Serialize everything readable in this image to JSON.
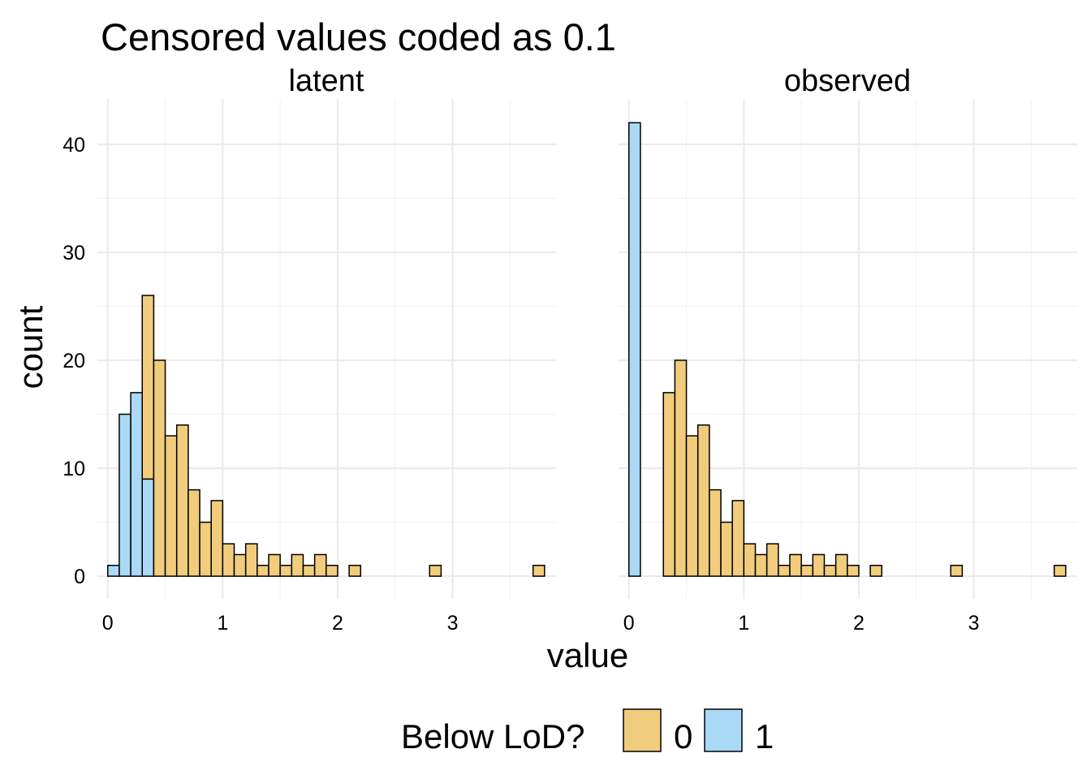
{
  "chart_data": {
    "type": "bar",
    "title": "Censored values coded as 0.1",
    "xlabel": "value",
    "ylabel": "count",
    "xlim": [
      -0.09,
      3.9
    ],
    "ylim": [
      -2.1,
      44.2
    ],
    "x_ticks": [
      0,
      1,
      2,
      3
    ],
    "y_ticks": [
      0,
      10,
      20,
      30,
      40
    ],
    "grid": true,
    "bin_width": 0.1,
    "legend": {
      "title": "Below LoD?",
      "position": "bottom",
      "entries": [
        {
          "label": "0",
          "color": "#f0cc7c"
        },
        {
          "label": "1",
          "color": "#a9d9f5"
        }
      ]
    },
    "colors": {
      "0": "#f0cc7c",
      "1": "#a9d9f5"
    },
    "panels": [
      {
        "label": "latent",
        "bars": [
          {
            "x": 0.05,
            "count": 1,
            "group": "1"
          },
          {
            "x": 0.15,
            "count": 15,
            "group": "1"
          },
          {
            "x": 0.25,
            "count": 17,
            "group": "1"
          },
          {
            "x": 0.35,
            "count": 9,
            "group": "1"
          },
          {
            "x": 0.35,
            "count": 17,
            "group": "0",
            "base": 9
          },
          {
            "x": 0.45,
            "count": 20,
            "group": "0"
          },
          {
            "x": 0.55,
            "count": 13,
            "group": "0"
          },
          {
            "x": 0.65,
            "count": 14,
            "group": "0"
          },
          {
            "x": 0.75,
            "count": 8,
            "group": "0"
          },
          {
            "x": 0.85,
            "count": 5,
            "group": "0"
          },
          {
            "x": 0.95,
            "count": 7,
            "group": "0"
          },
          {
            "x": 1.05,
            "count": 3,
            "group": "0"
          },
          {
            "x": 1.15,
            "count": 2,
            "group": "0"
          },
          {
            "x": 1.25,
            "count": 3,
            "group": "0"
          },
          {
            "x": 1.35,
            "count": 1,
            "group": "0"
          },
          {
            "x": 1.45,
            "count": 2,
            "group": "0"
          },
          {
            "x": 1.55,
            "count": 1,
            "group": "0"
          },
          {
            "x": 1.65,
            "count": 2,
            "group": "0"
          },
          {
            "x": 1.75,
            "count": 1,
            "group": "0"
          },
          {
            "x": 1.85,
            "count": 2,
            "group": "0"
          },
          {
            "x": 1.95,
            "count": 1,
            "group": "0"
          },
          {
            "x": 2.05,
            "count": 0,
            "group": "0"
          },
          {
            "x": 2.15,
            "count": 1,
            "group": "0"
          },
          {
            "x": 2.25,
            "count": 0,
            "group": "0"
          },
          {
            "x": 2.35,
            "count": 0,
            "group": "0"
          },
          {
            "x": 2.45,
            "count": 0,
            "group": "0"
          },
          {
            "x": 2.55,
            "count": 0,
            "group": "0"
          },
          {
            "x": 2.65,
            "count": 0,
            "group": "0"
          },
          {
            "x": 2.75,
            "count": 0,
            "group": "0"
          },
          {
            "x": 2.85,
            "count": 1,
            "group": "0"
          },
          {
            "x": 2.95,
            "count": 0,
            "group": "0"
          },
          {
            "x": 3.05,
            "count": 0,
            "group": "0"
          },
          {
            "x": 3.15,
            "count": 0,
            "group": "0"
          },
          {
            "x": 3.25,
            "count": 0,
            "group": "0"
          },
          {
            "x": 3.35,
            "count": 0,
            "group": "0"
          },
          {
            "x": 3.45,
            "count": 0,
            "group": "0"
          },
          {
            "x": 3.55,
            "count": 0,
            "group": "0"
          },
          {
            "x": 3.65,
            "count": 0,
            "group": "0"
          },
          {
            "x": 3.75,
            "count": 1,
            "group": "0"
          }
        ]
      },
      {
        "label": "observed",
        "bars": [
          {
            "x": 0.05,
            "count": 42,
            "group": "1"
          },
          {
            "x": 0.15,
            "count": 0,
            "group": "0"
          },
          {
            "x": 0.25,
            "count": 0,
            "group": "0"
          },
          {
            "x": 0.35,
            "count": 17,
            "group": "0"
          },
          {
            "x": 0.45,
            "count": 20,
            "group": "0"
          },
          {
            "x": 0.55,
            "count": 13,
            "group": "0"
          },
          {
            "x": 0.65,
            "count": 14,
            "group": "0"
          },
          {
            "x": 0.75,
            "count": 8,
            "group": "0"
          },
          {
            "x": 0.85,
            "count": 5,
            "group": "0"
          },
          {
            "x": 0.95,
            "count": 7,
            "group": "0"
          },
          {
            "x": 1.05,
            "count": 3,
            "group": "0"
          },
          {
            "x": 1.15,
            "count": 2,
            "group": "0"
          },
          {
            "x": 1.25,
            "count": 3,
            "group": "0"
          },
          {
            "x": 1.35,
            "count": 1,
            "group": "0"
          },
          {
            "x": 1.45,
            "count": 2,
            "group": "0"
          },
          {
            "x": 1.55,
            "count": 1,
            "group": "0"
          },
          {
            "x": 1.65,
            "count": 2,
            "group": "0"
          },
          {
            "x": 1.75,
            "count": 1,
            "group": "0"
          },
          {
            "x": 1.85,
            "count": 2,
            "group": "0"
          },
          {
            "x": 1.95,
            "count": 1,
            "group": "0"
          },
          {
            "x": 2.05,
            "count": 0,
            "group": "0"
          },
          {
            "x": 2.15,
            "count": 1,
            "group": "0"
          },
          {
            "x": 2.25,
            "count": 0,
            "group": "0"
          },
          {
            "x": 2.35,
            "count": 0,
            "group": "0"
          },
          {
            "x": 2.45,
            "count": 0,
            "group": "0"
          },
          {
            "x": 2.55,
            "count": 0,
            "group": "0"
          },
          {
            "x": 2.65,
            "count": 0,
            "group": "0"
          },
          {
            "x": 2.75,
            "count": 0,
            "group": "0"
          },
          {
            "x": 2.85,
            "count": 1,
            "group": "0"
          },
          {
            "x": 2.95,
            "count": 0,
            "group": "0"
          },
          {
            "x": 3.05,
            "count": 0,
            "group": "0"
          },
          {
            "x": 3.15,
            "count": 0,
            "group": "0"
          },
          {
            "x": 3.25,
            "count": 0,
            "group": "0"
          },
          {
            "x": 3.35,
            "count": 0,
            "group": "0"
          },
          {
            "x": 3.45,
            "count": 0,
            "group": "0"
          },
          {
            "x": 3.55,
            "count": 0,
            "group": "0"
          },
          {
            "x": 3.65,
            "count": 0,
            "group": "0"
          },
          {
            "x": 3.75,
            "count": 1,
            "group": "0"
          }
        ]
      }
    ]
  }
}
